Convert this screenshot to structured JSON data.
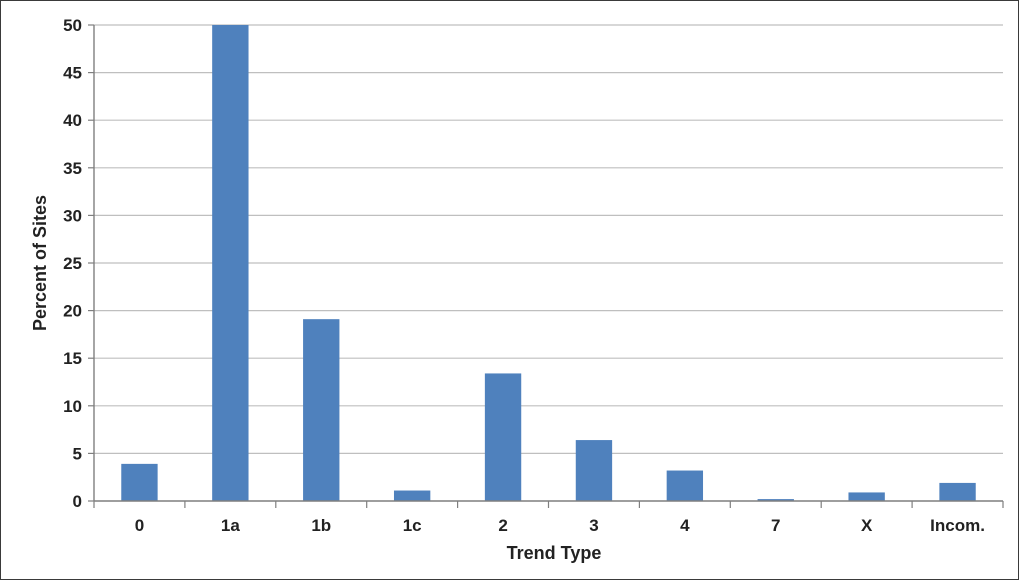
{
  "chart_data": {
    "type": "bar",
    "title": "",
    "xlabel": "Trend Type",
    "ylabel": "Percent of Sites",
    "categories": [
      "0",
      "1a",
      "1b",
      "1c",
      "2",
      "3",
      "4",
      "7",
      "X",
      "Incom."
    ],
    "values": [
      3.9,
      50.0,
      19.1,
      1.1,
      13.4,
      6.4,
      3.2,
      0.2,
      0.9,
      1.9
    ],
    "ylim": [
      0,
      50
    ],
    "yticks": [
      "0",
      "5",
      "10",
      "15",
      "20",
      "25",
      "30",
      "35",
      "40",
      "45",
      "50"
    ],
    "grid": true,
    "legend": "none",
    "bar_color": "#4f81bd",
    "grid_color": "#bfbfbf",
    "axis_color": "#7f7f7f"
  }
}
